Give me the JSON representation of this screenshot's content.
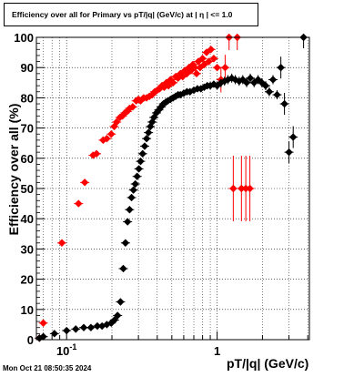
{
  "title": "Efficiency over all for Primary vs pT/|q| (GeV/c) at |  η | <= 1.0",
  "timestamp": "Mon Oct 21 08:50:35 2024",
  "colors": {
    "series_red": "#ff0000",
    "series_black": "#000000",
    "grid": "#000000"
  },
  "chart_data": {
    "type": "scatter",
    "title": "Efficiency over all for Primary vs pT/|q| (GeV/c) at |  η | <= 1.0",
    "xlabel": "pT/|q| (GeV/c)",
    "ylabel": "Efficiency over all (%)",
    "x_scale": "log",
    "xlim": [
      0.063,
      4.1
    ],
    "ylim": [
      0,
      100
    ],
    "x_tick_labels": [
      {
        "value": 0.1,
        "label": "10^{-1}"
      },
      {
        "value": 1,
        "label": "1"
      }
    ],
    "y_ticks": [
      0,
      10,
      20,
      30,
      40,
      50,
      60,
      70,
      80,
      90,
      100
    ],
    "grid": true,
    "legend": "none",
    "series": [
      {
        "color": "#ff0000",
        "points": [
          {
            "x": 0.066,
            "y": 0.5
          },
          {
            "x": 0.07,
            "y": 5.5
          },
          {
            "x": 0.093,
            "y": 32
          },
          {
            "x": 0.12,
            "y": 45
          },
          {
            "x": 0.132,
            "y": 52
          },
          {
            "x": 0.15,
            "y": 61
          },
          {
            "x": 0.158,
            "y": 61.5
          },
          {
            "x": 0.175,
            "y": 66
          },
          {
            "x": 0.185,
            "y": 66.5
          },
          {
            "x": 0.198,
            "y": 68
          },
          {
            "x": 0.207,
            "y": 70.5
          },
          {
            "x": 0.215,
            "y": 72
          },
          {
            "x": 0.226,
            "y": 73.5
          },
          {
            "x": 0.235,
            "y": 74
          },
          {
            "x": 0.244,
            "y": 75
          },
          {
            "x": 0.253,
            "y": 75.5
          },
          {
            "x": 0.262,
            "y": 76.5
          },
          {
            "x": 0.275,
            "y": 77
          },
          {
            "x": 0.29,
            "y": 79
          },
          {
            "x": 0.3,
            "y": 79.5
          },
          {
            "x": 0.31,
            "y": 79
          },
          {
            "x": 0.325,
            "y": 80
          },
          {
            "x": 0.34,
            "y": 80
          },
          {
            "x": 0.355,
            "y": 80.5
          },
          {
            "x": 0.37,
            "y": 81
          },
          {
            "x": 0.385,
            "y": 82
          },
          {
            "x": 0.4,
            "y": 82.5
          },
          {
            "x": 0.415,
            "y": 83
          },
          {
            "x": 0.43,
            "y": 84
          },
          {
            "x": 0.445,
            "y": 83.5
          },
          {
            "x": 0.46,
            "y": 85
          },
          {
            "x": 0.475,
            "y": 84
          },
          {
            "x": 0.49,
            "y": 86
          },
          {
            "x": 0.51,
            "y": 85
          },
          {
            "x": 0.53,
            "y": 87
          },
          {
            "x": 0.55,
            "y": 86.5
          },
          {
            "x": 0.57,
            "y": 88
          },
          {
            "x": 0.59,
            "y": 87
          },
          {
            "x": 0.61,
            "y": 89
          },
          {
            "x": 0.63,
            "y": 88
          },
          {
            "x": 0.65,
            "y": 90
          },
          {
            "x": 0.67,
            "y": 89
          },
          {
            "x": 0.69,
            "y": 91
          },
          {
            "x": 0.71,
            "y": 90
          },
          {
            "x": 0.73,
            "y": 88
          },
          {
            "x": 0.75,
            "y": 92
          },
          {
            "x": 0.77,
            "y": 90
          },
          {
            "x": 0.8,
            "y": 93
          },
          {
            "x": 0.82,
            "y": 91
          },
          {
            "x": 0.85,
            "y": 95
          },
          {
            "x": 0.88,
            "y": 92
          },
          {
            "x": 0.91,
            "y": 96
          },
          {
            "x": 0.95,
            "y": 93
          },
          {
            "x": 1.0,
            "y": 90
          },
          {
            "x": 1.06,
            "y": 86
          },
          {
            "x": 1.13,
            "y": 90
          },
          {
            "x": 1.2,
            "y": 100
          },
          {
            "x": 1.28,
            "y": 50
          },
          {
            "x": 1.36,
            "y": 100
          },
          {
            "x": 1.45,
            "y": 50
          },
          {
            "x": 1.55,
            "y": 50
          },
          {
            "x": 1.65,
            "y": 50
          }
        ]
      },
      {
        "color": "#000000",
        "points": [
          {
            "x": 0.066,
            "y": 0.5
          },
          {
            "x": 0.07,
            "y": 1
          },
          {
            "x": 0.083,
            "y": 2
          },
          {
            "x": 0.1,
            "y": 3
          },
          {
            "x": 0.115,
            "y": 3.5
          },
          {
            "x": 0.13,
            "y": 4
          },
          {
            "x": 0.145,
            "y": 4
          },
          {
            "x": 0.16,
            "y": 4.5
          },
          {
            "x": 0.172,
            "y": 4.5
          },
          {
            "x": 0.185,
            "y": 5
          },
          {
            "x": 0.198,
            "y": 5.5
          },
          {
            "x": 0.208,
            "y": 6.5
          },
          {
            "x": 0.218,
            "y": 8
          },
          {
            "x": 0.228,
            "y": 12.5
          },
          {
            "x": 0.238,
            "y": 23.5
          },
          {
            "x": 0.246,
            "y": 32
          },
          {
            "x": 0.254,
            "y": 39
          },
          {
            "x": 0.262,
            "y": 43
          },
          {
            "x": 0.27,
            "y": 47
          },
          {
            "x": 0.278,
            "y": 49.5
          },
          {
            "x": 0.286,
            "y": 51.5
          },
          {
            "x": 0.294,
            "y": 54
          },
          {
            "x": 0.302,
            "y": 56.5
          },
          {
            "x": 0.31,
            "y": 59
          },
          {
            "x": 0.32,
            "y": 61.5
          },
          {
            "x": 0.33,
            "y": 64
          },
          {
            "x": 0.34,
            "y": 66.5
          },
          {
            "x": 0.35,
            "y": 68.5
          },
          {
            "x": 0.36,
            "y": 70.5
          },
          {
            "x": 0.37,
            "y": 72
          },
          {
            "x": 0.38,
            "y": 73.5
          },
          {
            "x": 0.395,
            "y": 75
          },
          {
            "x": 0.41,
            "y": 76
          },
          {
            "x": 0.425,
            "y": 77
          },
          {
            "x": 0.44,
            "y": 78
          },
          {
            "x": 0.455,
            "y": 78.5
          },
          {
            "x": 0.47,
            "y": 79
          },
          {
            "x": 0.49,
            "y": 79.5
          },
          {
            "x": 0.51,
            "y": 80
          },
          {
            "x": 0.53,
            "y": 80.5
          },
          {
            "x": 0.55,
            "y": 81
          },
          {
            "x": 0.57,
            "y": 81
          },
          {
            "x": 0.6,
            "y": 81.5
          },
          {
            "x": 0.63,
            "y": 82
          },
          {
            "x": 0.66,
            "y": 82
          },
          {
            "x": 0.7,
            "y": 82.5
          },
          {
            "x": 0.74,
            "y": 83
          },
          {
            "x": 0.78,
            "y": 83
          },
          {
            "x": 0.82,
            "y": 83.5
          },
          {
            "x": 0.86,
            "y": 84
          },
          {
            "x": 0.9,
            "y": 84
          },
          {
            "x": 0.95,
            "y": 84.5
          },
          {
            "x": 1.0,
            "y": 84
          },
          {
            "x": 1.06,
            "y": 85
          },
          {
            "x": 1.12,
            "y": 85.5
          },
          {
            "x": 1.18,
            "y": 86
          },
          {
            "x": 1.25,
            "y": 86.5
          },
          {
            "x": 1.32,
            "y": 86
          },
          {
            "x": 1.4,
            "y": 85.5
          },
          {
            "x": 1.48,
            "y": 86
          },
          {
            "x": 1.57,
            "y": 85
          },
          {
            "x": 1.66,
            "y": 86.5
          },
          {
            "x": 1.76,
            "y": 85
          },
          {
            "x": 1.87,
            "y": 86
          },
          {
            "x": 1.98,
            "y": 85
          },
          {
            "x": 2.1,
            "y": 84
          },
          {
            "x": 2.22,
            "y": 82
          },
          {
            "x": 2.35,
            "y": 86
          },
          {
            "x": 2.5,
            "y": 81
          },
          {
            "x": 2.65,
            "y": 90
          },
          {
            "x": 2.8,
            "y": 78
          },
          {
            "x": 3.0,
            "y": 62
          },
          {
            "x": 3.2,
            "y": 67
          },
          {
            "x": 3.75,
            "y": 100
          }
        ]
      }
    ]
  }
}
